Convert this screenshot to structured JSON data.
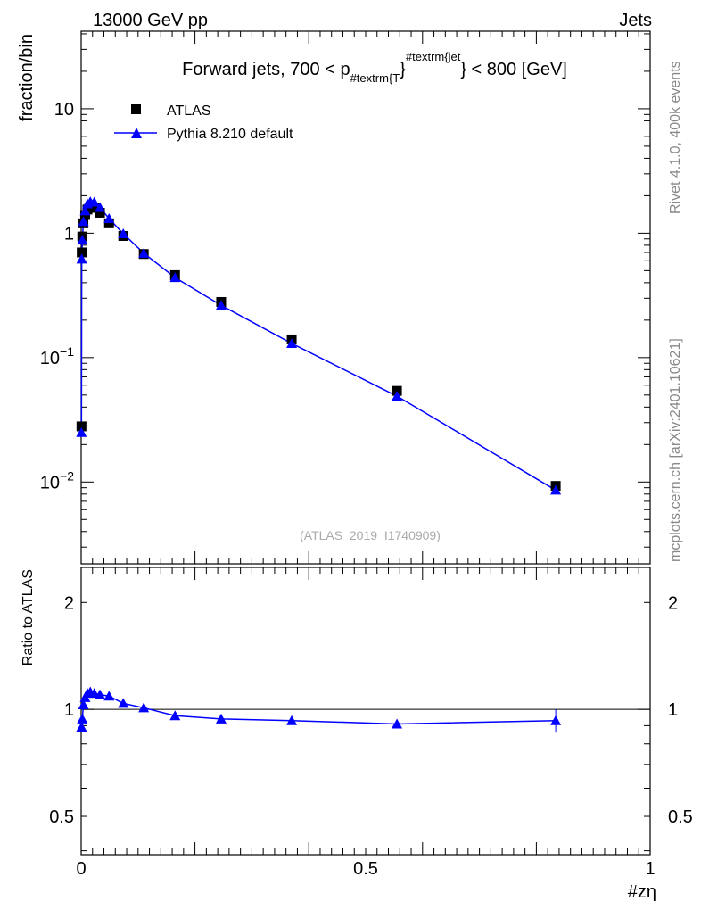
{
  "header": {
    "left": "13000 GeV pp",
    "right": "Jets"
  },
  "side_labels": {
    "rivet": "Rivet 4.1.0,  400k events",
    "mcplots": "mcplots.cern.ch [arXiv:2401.10621]"
  },
  "title": {
    "main": "Forward jets, 700 < p",
    "sub": "#textrm{T",
    "brace": "}",
    "sup": "#textrm{jet",
    "tail": "} < 800 [GeV]"
  },
  "analysis_id": "(ATLAS_2019_I1740909)",
  "colors": {
    "data": "#000000",
    "mc": "#0000ff"
  },
  "chart_data": [
    {
      "type": "line",
      "panel": "main",
      "ylabel": "fraction/bin",
      "yscale": "log",
      "ylim": [
        0.0022,
        42
      ],
      "xlim": [
        0,
        1
      ],
      "ytick_labels": [
        "10",
        "1",
        "10^-1",
        "10^-2"
      ],
      "ytick_values": [
        10,
        1,
        0.1,
        0.01
      ],
      "legend": {
        "placement": "top-left",
        "entries": [
          "ATLAS",
          "Pythia 8.210 default"
        ]
      },
      "x": [
        0.0005,
        0.001,
        0.002,
        0.004,
        0.007,
        0.011,
        0.016,
        0.023,
        0.033,
        0.049,
        0.074,
        0.11,
        0.165,
        0.246,
        0.37,
        0.555,
        0.834
      ],
      "series": [
        {
          "name": "ATLAS",
          "marker": "square",
          "values": [
            0.028,
            0.7,
            0.94,
            1.2,
            1.4,
            1.55,
            1.6,
            1.6,
            1.46,
            1.2,
            0.95,
            0.68,
            0.46,
            0.28,
            0.14,
            0.054,
            0.0093
          ]
        },
        {
          "name": "Pythia 8.210 default",
          "marker": "triangle",
          "values": [
            0.025,
            0.62,
            0.88,
            1.24,
            1.51,
            1.72,
            1.79,
            1.78,
            1.61,
            1.31,
            0.99,
            0.69,
            0.44,
            0.263,
            0.13,
            0.049,
            0.0086
          ]
        }
      ]
    },
    {
      "type": "line",
      "panel": "ratio",
      "ylabel": "Ratio to ATLAS",
      "xlabel": "#zη",
      "yscale": "log",
      "ylim": [
        0.39,
        2.51
      ],
      "xlim": [
        0,
        1
      ],
      "ytick_labels": [
        "2",
        "1",
        "0.5"
      ],
      "ytick_values": [
        2,
        1,
        0.5
      ],
      "xtick_labels": [
        "0",
        "0.5",
        "1"
      ],
      "xtick_values": [
        0,
        0.5,
        1
      ],
      "x": [
        0.0005,
        0.001,
        0.002,
        0.004,
        0.007,
        0.011,
        0.016,
        0.023,
        0.033,
        0.049,
        0.074,
        0.11,
        0.165,
        0.246,
        0.37,
        0.555,
        0.834
      ],
      "series": [
        {
          "name": "Pythia 8.210 default",
          "values": [
            0.89,
            0.89,
            0.94,
            1.03,
            1.08,
            1.11,
            1.12,
            1.11,
            1.1,
            1.09,
            1.04,
            1.01,
            0.96,
            0.94,
            0.93,
            0.91,
            0.93
          ],
          "errors": [
            0.01,
            0.01,
            0.01,
            0.01,
            0.01,
            0.01,
            0.01,
            0.01,
            0.01,
            0.01,
            0.01,
            0.01,
            0.01,
            0.01,
            0.015,
            0.025,
            0.07
          ]
        }
      ]
    }
  ]
}
